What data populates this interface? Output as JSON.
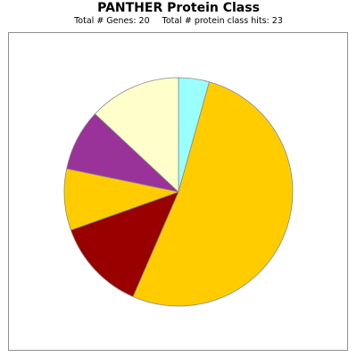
{
  "chart_data": {
    "type": "pie",
    "title": "PANTHER Protein Class",
    "subtitle_genes": "Total # Genes: 20",
    "subtitle_hits": "Total # protein class hits: 23",
    "legend": "none",
    "slices": [
      {
        "value": 4.35,
        "color": "#99ffff"
      },
      {
        "value": 52.17,
        "color": "#ffcc00"
      },
      {
        "value": 13.04,
        "color": "#990000"
      },
      {
        "value": 8.7,
        "color": "#ffcc00"
      },
      {
        "value": 8.7,
        "color": "#993399"
      },
      {
        "value": 13.04,
        "color": "#ffffcc"
      }
    ]
  }
}
